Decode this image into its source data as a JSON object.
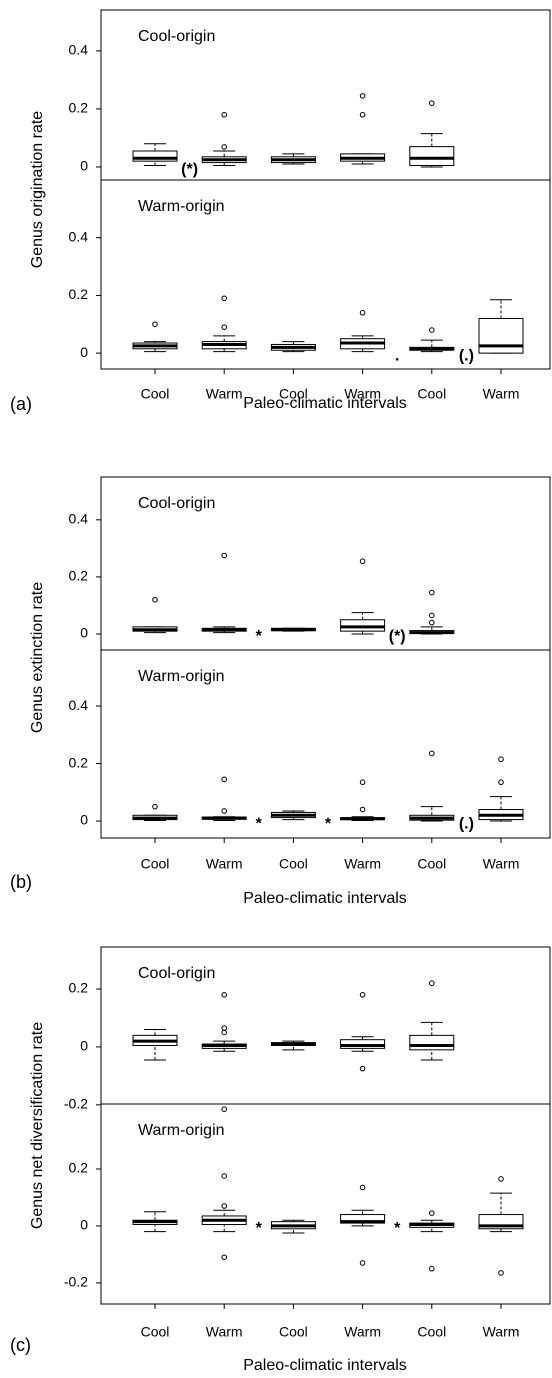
{
  "chart_data": [
    {
      "type": "boxplot",
      "panel_label": "(a)",
      "ylabel": "Genus origination rate",
      "xlabel": "Paleo-climatic intervals",
      "categories": [
        "Cool",
        "Warm",
        "Cool",
        "Warm",
        "Cool",
        "Warm"
      ],
      "panels": [
        {
          "title": "Cool-origin",
          "ylim": [
            -0.045,
            0.541
          ],
          "yticks": [
            0,
            0.2,
            0.4
          ],
          "boxes": [
            {
              "min": 0.005,
              "q1": 0.02,
              "median": 0.03,
              "q3": 0.055,
              "max": 0.08,
              "outliers": []
            },
            {
              "min": 0.005,
              "q1": 0.015,
              "median": 0.025,
              "q3": 0.035,
              "max": 0.055,
              "outliers": [
                0.069,
                0.18
              ]
            },
            {
              "min": 0.01,
              "q1": 0.015,
              "median": 0.025,
              "q3": 0.035,
              "max": 0.045,
              "outliers": []
            },
            {
              "min": 0.01,
              "q1": 0.02,
              "median": 0.03,
              "q3": 0.045,
              "max": 0.045,
              "outliers": [
                0.18,
                0.245
              ]
            },
            {
              "min": 0,
              "q1": 0.005,
              "median": 0.03,
              "q3": 0.07,
              "max": 0.115,
              "outliers": [
                0.22
              ]
            },
            null
          ],
          "markers": [
            "(*)",
            null,
            null,
            null,
            null,
            null
          ]
        },
        {
          "title": "Warm-origin",
          "ylim": [
            -0.055,
            0.6
          ],
          "yticks": [
            0,
            0.2,
            0.4
          ],
          "boxes": [
            {
              "min": 0.005,
              "q1": 0.015,
              "median": 0.025,
              "q3": 0.035,
              "max": 0.04,
              "outliers": [
                0.1
              ]
            },
            {
              "min": 0.005,
              "q1": 0.015,
              "median": 0.03,
              "q3": 0.04,
              "max": 0.06,
              "outliers": [
                0.09,
                0.19
              ]
            },
            {
              "min": 0.005,
              "q1": 0.01,
              "median": 0.02,
              "q3": 0.03,
              "max": 0.04,
              "outliers": []
            },
            {
              "min": 0.005,
              "q1": 0.015,
              "median": 0.035,
              "q3": 0.05,
              "max": 0.06,
              "outliers": [
                0.14
              ]
            },
            {
              "min": 0.005,
              "q1": 0.01,
              "median": 0.015,
              "q3": 0.02,
              "max": 0.045,
              "outliers": [
                0.08
              ]
            },
            {
              "min": 0,
              "q1": 0,
              "median": 0.025,
              "q3": 0.12,
              "max": 0.185,
              "outliers": []
            }
          ],
          "markers": [
            null,
            null,
            null,
            ".",
            "(.)",
            null
          ]
        }
      ]
    },
    {
      "type": "boxplot",
      "panel_label": "(b)",
      "ylabel": "Genus extinction rate",
      "xlabel": "Paleo-climatic intervals",
      "categories": [
        "Cool",
        "Warm",
        "Cool",
        "Warm",
        "Cool",
        "Warm"
      ],
      "panels": [
        {
          "title": "Cool-origin",
          "ylim": [
            -0.056,
            0.55
          ],
          "yticks": [
            0,
            0.2,
            0.4
          ],
          "boxes": [
            {
              "min": 0.005,
              "q1": 0.01,
              "median": 0.015,
              "q3": 0.025,
              "max": 0.025,
              "outliers": [
                0.12
              ]
            },
            {
              "min": 0.005,
              "q1": 0.01,
              "median": 0.015,
              "q3": 0.02,
              "max": 0.025,
              "outliers": [
                0.275
              ]
            },
            {
              "min": 0.01,
              "q1": 0.012,
              "median": 0.015,
              "q3": 0.02,
              "max": 0.02,
              "outliers": []
            },
            {
              "min": 0,
              "q1": 0.01,
              "median": 0.025,
              "q3": 0.05,
              "max": 0.075,
              "outliers": [
                0.255
              ]
            },
            {
              "min": 0,
              "q1": 0.002,
              "median": 0.005,
              "q3": 0.012,
              "max": 0.025,
              "outliers": [
                0.04,
                0.065,
                0.145
              ]
            },
            null
          ],
          "markers": [
            null,
            "*",
            null,
            "(*)",
            null,
            null
          ]
        },
        {
          "title": "Warm-origin",
          "ylim": [
            -0.059,
            0.595
          ],
          "yticks": [
            0,
            0.2,
            0.4
          ],
          "boxes": [
            {
              "min": 0.002,
              "q1": 0.005,
              "median": 0.01,
              "q3": 0.02,
              "max": 0.02,
              "outliers": [
                0.05
              ]
            },
            {
              "min": 0.002,
              "q1": 0.006,
              "median": 0.01,
              "q3": 0.014,
              "max": 0.015,
              "outliers": [
                0.035,
                0.145
              ]
            },
            {
              "min": 0.005,
              "q1": 0.012,
              "median": 0.02,
              "q3": 0.03,
              "max": 0.035,
              "outliers": []
            },
            {
              "min": 0.002,
              "q1": 0.005,
              "median": 0.008,
              "q3": 0.012,
              "max": 0.015,
              "outliers": [
                0.04,
                0.135
              ]
            },
            {
              "min": 0,
              "q1": 0.003,
              "median": 0.01,
              "q3": 0.02,
              "max": 0.05,
              "outliers": [
                0.235
              ]
            },
            {
              "min": 0,
              "q1": 0.005,
              "median": 0.02,
              "q3": 0.04,
              "max": 0.085,
              "outliers": [
                0.135,
                0.215
              ]
            }
          ],
          "markers": [
            null,
            "*",
            "*",
            null,
            "(.)",
            null
          ]
        }
      ]
    },
    {
      "type": "boxplot",
      "panel_label": "(c)",
      "ylabel": "Genus net diversification rate",
      "xlabel": "Paleo-climatic intervals",
      "categories": [
        "Cool",
        "Warm",
        "Cool",
        "Warm",
        "Cool",
        "Warm"
      ],
      "panels": [
        {
          "title": "Cool-origin",
          "ylim": [
            -0.197,
            0.345
          ],
          "yticks": [
            -0.2,
            0,
            0.2
          ],
          "boxes": [
            {
              "min": -0.045,
              "q1": 0.005,
              "median": 0.02,
              "q3": 0.04,
              "max": 0.06,
              "outliers": []
            },
            {
              "min": -0.015,
              "q1": -0.005,
              "median": 0.005,
              "q3": 0.01,
              "max": 0.02,
              "outliers": [
                0.18,
                0.065,
                0.05,
                -0.215
              ]
            },
            {
              "min": -0.01,
              "q1": 0.005,
              "median": 0.01,
              "q3": 0.015,
              "max": 0.02,
              "outliers": []
            },
            {
              "min": -0.015,
              "q1": -0.005,
              "median": 0.005,
              "q3": 0.025,
              "max": 0.035,
              "outliers": [
                0.18,
                -0.075
              ]
            },
            {
              "min": -0.045,
              "q1": -0.01,
              "median": 0.005,
              "q3": 0.04,
              "max": 0.085,
              "outliers": [
                0.22
              ]
            },
            null
          ],
          "markers": [
            null,
            null,
            null,
            null,
            null,
            null
          ]
        },
        {
          "title": "Warm-origin",
          "ylim": [
            -0.274,
            0.428
          ],
          "yticks": [
            -0.2,
            0,
            0.2
          ],
          "boxes": [
            {
              "min": -0.02,
              "q1": 0.005,
              "median": 0.015,
              "q3": 0.02,
              "max": 0.05,
              "outliers": []
            },
            {
              "min": -0.02,
              "q1": 0.005,
              "median": 0.02,
              "q3": 0.035,
              "max": 0.055,
              "outliers": [
                0.175,
                0.07,
                -0.11
              ]
            },
            {
              "min": -0.025,
              "q1": -0.01,
              "median": 0,
              "q3": 0.015,
              "max": 0.02,
              "outliers": []
            },
            {
              "min": 0,
              "q1": 0.01,
              "median": 0.015,
              "q3": 0.04,
              "max": 0.055,
              "outliers": [
                0.135,
                -0.13
              ]
            },
            {
              "min": -0.02,
              "q1": -0.005,
              "median": 0.005,
              "q3": 0.01,
              "max": 0.02,
              "outliers": [
                0.045,
                -0.15
              ]
            },
            {
              "min": -0.02,
              "q1": -0.01,
              "median": 0,
              "q3": 0.04,
              "max": 0.115,
              "outliers": [
                0.165,
                -0.165
              ]
            }
          ],
          "markers": [
            null,
            "*",
            null,
            "*",
            null,
            null
          ]
        }
      ]
    }
  ]
}
